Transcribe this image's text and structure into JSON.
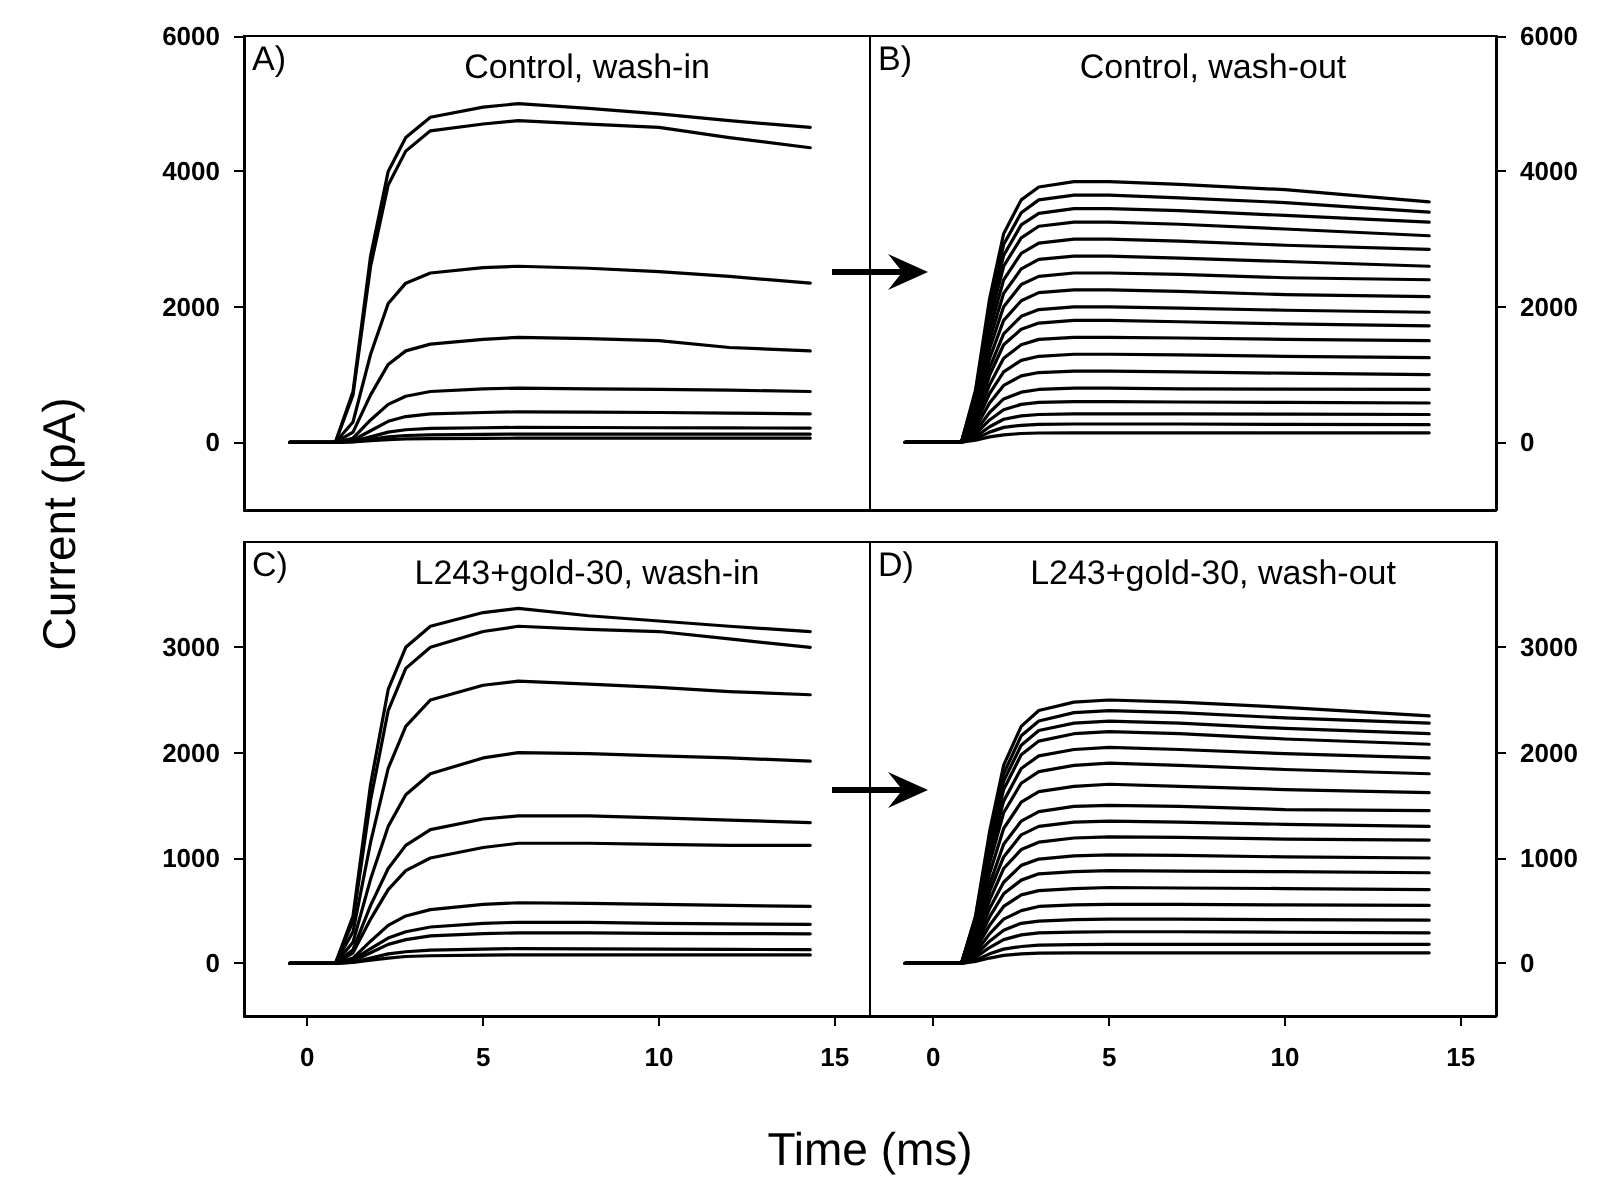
{
  "chart_data": [
    {
      "type": "line",
      "title": "Control, wash-in",
      "ylabel": "Current (pA)",
      "annotations": [
        "A)"
      ],
      "tick_labels": "y",
      "xlim": [
        -1.8,
        16
      ],
      "ylim": [
        -1000,
        6000
      ],
      "yticks": [
        0,
        2000,
        4000,
        6000
      ],
      "x": [
        -0.5,
        0.8,
        1.3,
        1.8,
        2.3,
        2.8,
        3.5,
        5,
        6,
        8,
        10,
        12,
        14.3
      ],
      "series": [
        {
          "color": "#000000",
          "values": [
            0,
            0,
            750,
            2750,
            4000,
            4500,
            4800,
            4950,
            5000,
            4930,
            4850,
            4750,
            4650
          ]
        },
        {
          "color": "#000000",
          "values": [
            0,
            0,
            700,
            2600,
            3800,
            4300,
            4600,
            4700,
            4750,
            4700,
            4650,
            4500,
            4350
          ]
        },
        {
          "color": "#000000",
          "values": [
            0,
            0,
            300,
            1300,
            2050,
            2350,
            2500,
            2580,
            2600,
            2570,
            2520,
            2450,
            2350
          ]
        },
        {
          "color": "#000000",
          "values": [
            0,
            0,
            150,
            700,
            1150,
            1350,
            1450,
            1520,
            1550,
            1530,
            1500,
            1400,
            1350
          ]
        },
        {
          "color": "#000000",
          "values": [
            0,
            0,
            60,
            330,
            560,
            680,
            750,
            790,
            800,
            790,
            780,
            770,
            750
          ]
        },
        {
          "color": "#000000",
          "values": [
            0,
            0,
            30,
            170,
            310,
            380,
            420,
            440,
            450,
            445,
            440,
            430,
            420
          ]
        },
        {
          "color": "#000000",
          "values": [
            0,
            0,
            15,
            80,
            150,
            185,
            205,
            215,
            220,
            218,
            215,
            212,
            210
          ]
        },
        {
          "color": "#000000",
          "values": [
            0,
            0,
            10,
            45,
            80,
            100,
            110,
            118,
            120,
            120,
            120,
            120,
            120
          ]
        },
        {
          "color": "#000000",
          "values": [
            0,
            0,
            5,
            25,
            40,
            50,
            55,
            58,
            60,
            60,
            60,
            60,
            60
          ]
        }
      ]
    },
    {
      "type": "line",
      "title": "Control, wash-out",
      "annotations": [
        "B)"
      ],
      "tick_labels": "y",
      "xlim": [
        -1.8,
        16
      ],
      "ylim": [
        -1000,
        6000
      ],
      "yticks": [
        0,
        2000,
        4000,
        6000
      ],
      "x": [
        -0.8,
        0.8,
        1.2,
        1.6,
        2,
        2.5,
        3,
        4,
        5,
        7,
        10,
        14.1
      ],
      "series": [
        {
          "color": "#000000",
          "values": [
            0,
            0,
            770,
            2120,
            3080,
            3580,
            3770,
            3850,
            3850,
            3810,
            3730,
            3550
          ]
        },
        {
          "color": "#000000",
          "values": [
            0,
            0,
            730,
            2010,
            2920,
            3390,
            3580,
            3650,
            3650,
            3610,
            3540,
            3400
          ]
        },
        {
          "color": "#000000",
          "values": [
            0,
            0,
            690,
            1900,
            2760,
            3210,
            3380,
            3450,
            3450,
            3420,
            3350,
            3250
          ]
        },
        {
          "color": "#000000",
          "values": [
            0,
            0,
            650,
            1790,
            2600,
            3020,
            3190,
            3250,
            3250,
            3220,
            3150,
            3050
          ]
        },
        {
          "color": "#000000",
          "values": [
            0,
            0,
            600,
            1650,
            2400,
            2790,
            2940,
            3000,
            3000,
            2970,
            2910,
            2850
          ]
        },
        {
          "color": "#000000",
          "values": [
            0,
            0,
            550,
            1510,
            2200,
            2560,
            2700,
            2750,
            2750,
            2720,
            2670,
            2600
          ]
        },
        {
          "color": "#000000",
          "values": [
            0,
            0,
            500,
            1380,
            2000,
            2330,
            2450,
            2500,
            2500,
            2480,
            2430,
            2400
          ]
        },
        {
          "color": "#000000",
          "values": [
            0,
            0,
            450,
            1240,
            1800,
            2090,
            2210,
            2250,
            2250,
            2230,
            2180,
            2150
          ]
        },
        {
          "color": "#000000",
          "values": [
            0,
            0,
            400,
            1100,
            1600,
            1860,
            1960,
            2000,
            2000,
            1980,
            1950,
            1920
          ]
        },
        {
          "color": "#000000",
          "values": [
            0,
            0,
            360,
            990,
            1440,
            1670,
            1760,
            1800,
            1800,
            1780,
            1750,
            1720
          ]
        },
        {
          "color": "#000000",
          "values": [
            0,
            0,
            310,
            850,
            1240,
            1440,
            1520,
            1550,
            1550,
            1540,
            1520,
            1500
          ]
        },
        {
          "color": "#000000",
          "values": [
            0,
            0,
            260,
            720,
            1040,
            1210,
            1270,
            1300,
            1300,
            1290,
            1270,
            1250
          ]
        },
        {
          "color": "#000000",
          "values": [
            0,
            0,
            210,
            580,
            840,
            980,
            1030,
            1050,
            1050,
            1040,
            1020,
            1000
          ]
        },
        {
          "color": "#000000",
          "values": [
            0,
            0,
            160,
            440,
            640,
            740,
            780,
            800,
            800,
            790,
            785,
            780
          ]
        },
        {
          "color": "#000000",
          "values": [
            0,
            0,
            120,
            330,
            480,
            560,
            590,
            600,
            600,
            595,
            590,
            580
          ]
        },
        {
          "color": "#000000",
          "values": [
            0,
            0,
            80,
            230,
            340,
            390,
            410,
            420,
            420,
            420,
            415,
            410
          ]
        },
        {
          "color": "#000000",
          "values": [
            0,
            0,
            50,
            150,
            220,
            250,
            265,
            270,
            270,
            270,
            265,
            260
          ]
        },
        {
          "color": "#000000",
          "values": [
            0,
            0,
            30,
            80,
            110,
            130,
            137,
            140,
            140,
            140,
            140,
            140
          ]
        }
      ]
    },
    {
      "type": "line",
      "title": "L243+gold-30, wash-in",
      "xlabel": "Time (ms)",
      "annotations": [
        "C)"
      ],
      "xlim": [
        -1.8,
        16
      ],
      "xticks": [
        0,
        5,
        10,
        15
      ],
      "ylim": [
        -500,
        4000
      ],
      "yticks": [
        0,
        1000,
        2000,
        3000
      ],
      "x": [
        -0.5,
        0.8,
        1.3,
        1.8,
        2.3,
        2.8,
        3.5,
        5,
        6,
        8,
        10,
        12,
        14.3
      ],
      "series": [
        {
          "color": "#000000",
          "values": [
            0,
            0,
            450,
            1700,
            2600,
            3000,
            3200,
            3330,
            3370,
            3300,
            3250,
            3200,
            3150
          ]
        },
        {
          "color": "#000000",
          "values": [
            0,
            0,
            400,
            1550,
            2400,
            2800,
            3000,
            3150,
            3200,
            3170,
            3150,
            3080,
            3000
          ]
        },
        {
          "color": "#000000",
          "values": [
            0,
            0,
            300,
            1150,
            1850,
            2250,
            2500,
            2640,
            2680,
            2650,
            2620,
            2580,
            2550
          ]
        },
        {
          "color": "#000000",
          "values": [
            0,
            0,
            200,
            800,
            1300,
            1600,
            1800,
            1950,
            2000,
            1990,
            1970,
            1950,
            1920
          ]
        },
        {
          "color": "#000000",
          "values": [
            0,
            0,
            130,
            550,
            900,
            1120,
            1270,
            1370,
            1400,
            1400,
            1380,
            1360,
            1335
          ]
        },
        {
          "color": "#000000",
          "values": [
            0,
            0,
            100,
            420,
            700,
            880,
            1000,
            1100,
            1140,
            1140,
            1130,
            1120,
            1120
          ]
        },
        {
          "color": "#000000",
          "values": [
            0,
            0,
            50,
            210,
            360,
            450,
            510,
            560,
            575,
            570,
            560,
            550,
            540
          ]
        },
        {
          "color": "#000000",
          "values": [
            0,
            0,
            35,
            140,
            240,
            300,
            345,
            380,
            390,
            388,
            380,
            375,
            370
          ]
        },
        {
          "color": "#000000",
          "values": [
            0,
            0,
            25,
            100,
            180,
            225,
            260,
            282,
            290,
            290,
            285,
            282,
            280
          ]
        },
        {
          "color": "#000000",
          "values": [
            0,
            0,
            12,
            50,
            90,
            110,
            125,
            135,
            140,
            138,
            135,
            132,
            130
          ]
        },
        {
          "color": "#000000",
          "values": [
            0,
            0,
            8,
            30,
            50,
            65,
            72,
            78,
            80,
            80,
            80,
            80,
            80
          ]
        }
      ]
    },
    {
      "type": "line",
      "title": "L243+gold-30, wash-out",
      "annotations": [
        "D)"
      ],
      "xlim": [
        -1.8,
        16
      ],
      "xticks": [
        0,
        5,
        10,
        15
      ],
      "ylim": [
        -500,
        4000
      ],
      "yticks": [
        0,
        1000,
        2000,
        3000
      ],
      "x": [
        -0.8,
        0.8,
        1.2,
        1.6,
        2,
        2.5,
        3,
        4,
        5,
        7,
        10,
        14.1
      ],
      "series": [
        {
          "color": "#000000",
          "values": [
            0,
            0,
            450,
            1250,
            1880,
            2250,
            2400,
            2480,
            2500,
            2480,
            2430,
            2350
          ]
        },
        {
          "color": "#000000",
          "values": [
            0,
            0,
            430,
            1200,
            1800,
            2160,
            2300,
            2380,
            2400,
            2380,
            2330,
            2280
          ]
        },
        {
          "color": "#000000",
          "values": [
            0,
            0,
            410,
            1150,
            1730,
            2070,
            2210,
            2280,
            2300,
            2280,
            2230,
            2180
          ]
        },
        {
          "color": "#000000",
          "values": [
            0,
            0,
            400,
            1100,
            1650,
            1980,
            2110,
            2180,
            2200,
            2180,
            2130,
            2080
          ]
        },
        {
          "color": "#000000",
          "values": [
            0,
            0,
            370,
            1030,
            1540,
            1850,
            1970,
            2030,
            2050,
            2030,
            1990,
            1950
          ]
        },
        {
          "color": "#000000",
          "values": [
            0,
            0,
            340,
            950,
            1430,
            1710,
            1820,
            1880,
            1900,
            1880,
            1840,
            1800
          ]
        },
        {
          "color": "#000000",
          "values": [
            0,
            0,
            310,
            850,
            1280,
            1530,
            1630,
            1680,
            1700,
            1680,
            1650,
            1620
          ]
        },
        {
          "color": "#000000",
          "values": [
            0,
            0,
            270,
            750,
            1130,
            1350,
            1440,
            1490,
            1500,
            1490,
            1460,
            1450
          ]
        },
        {
          "color": "#000000",
          "values": [
            0,
            0,
            240,
            680,
            1010,
            1220,
            1300,
            1340,
            1350,
            1340,
            1320,
            1300
          ]
        },
        {
          "color": "#000000",
          "values": [
            0,
            0,
            220,
            600,
            900,
            1080,
            1150,
            1190,
            1200,
            1195,
            1180,
            1170
          ]
        },
        {
          "color": "#000000",
          "values": [
            0,
            0,
            190,
            520,
            770,
            930,
            990,
            1020,
            1030,
            1025,
            1010,
            1000
          ]
        },
        {
          "color": "#000000",
          "values": [
            0,
            0,
            160,
            440,
            660,
            790,
            850,
            870,
            880,
            875,
            870,
            860
          ]
        },
        {
          "color": "#000000",
          "values": [
            0,
            0,
            130,
            360,
            540,
            650,
            690,
            710,
            720,
            715,
            710,
            700
          ]
        },
        {
          "color": "#000000",
          "values": [
            0,
            0,
            100,
            280,
            420,
            500,
            540,
            555,
            560,
            560,
            555,
            550
          ]
        },
        {
          "color": "#000000",
          "values": [
            0,
            0,
            75,
            210,
            315,
            380,
            400,
            415,
            420,
            420,
            415,
            410
          ]
        },
        {
          "color": "#000000",
          "values": [
            0,
            0,
            55,
            150,
            225,
            270,
            290,
            297,
            300,
            300,
            295,
            290
          ]
        },
        {
          "color": "#000000",
          "values": [
            0,
            0,
            30,
            90,
            135,
            160,
            173,
            178,
            180,
            180,
            180,
            180
          ]
        },
        {
          "color": "#000000",
          "values": [
            0,
            0,
            18,
            50,
            75,
            90,
            96,
            99,
            100,
            100,
            100,
            100
          ]
        }
      ]
    }
  ]
}
